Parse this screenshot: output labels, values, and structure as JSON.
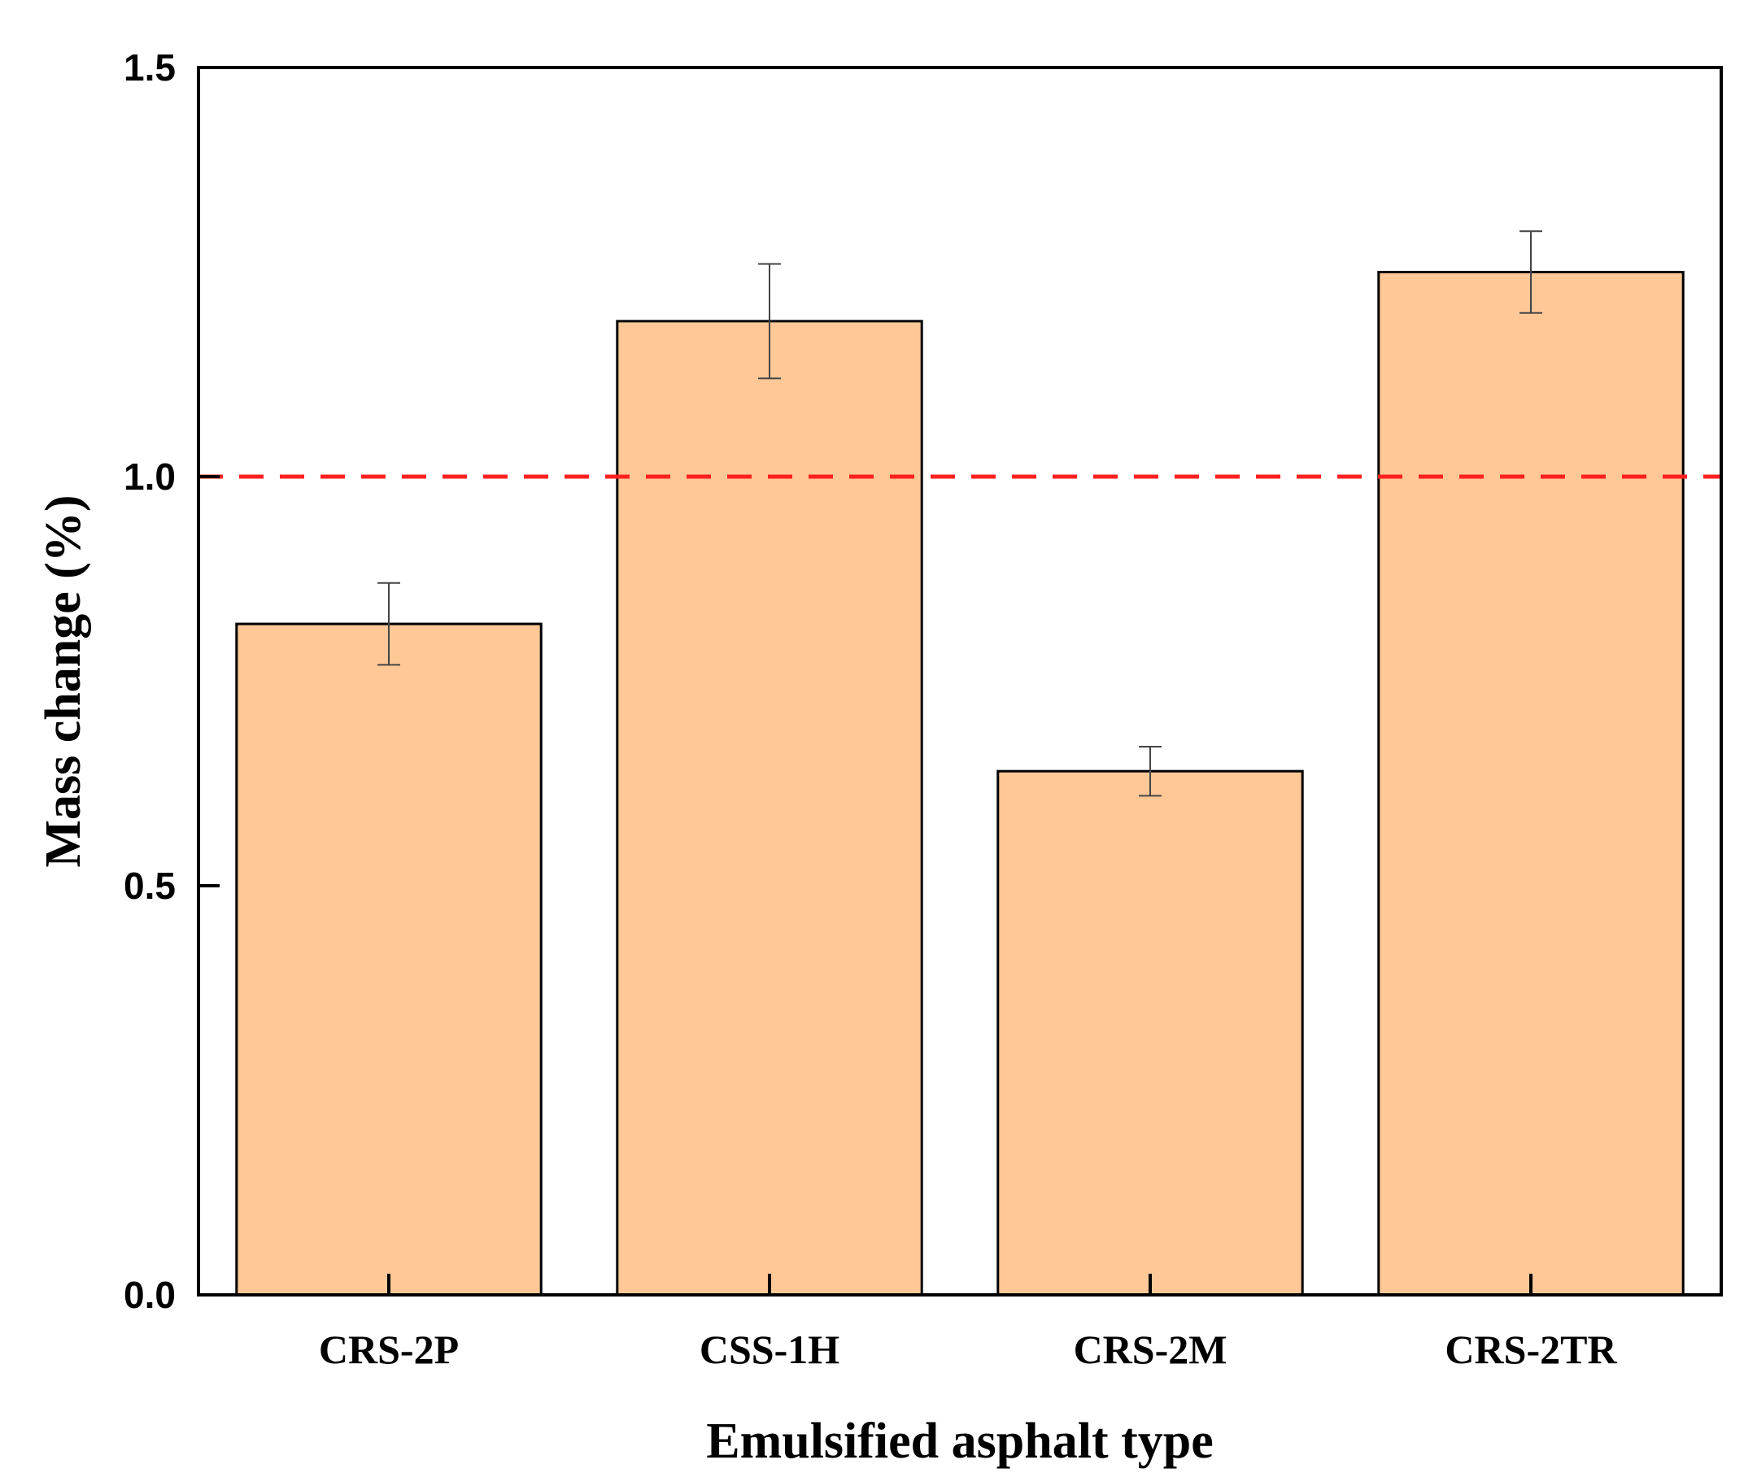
{
  "chart_data": {
    "type": "bar",
    "title": "",
    "xlabel": "Emulsified asphalt type",
    "ylabel": "Mass change (%)",
    "categories": [
      "CRS-2P",
      "CSS-1H",
      "CRS-2M",
      "CRS-2TR"
    ],
    "values": [
      0.82,
      1.19,
      0.64,
      1.25
    ],
    "errors": [
      0.05,
      0.07,
      0.03,
      0.05
    ],
    "ylim": [
      0,
      1.5
    ],
    "yticks": [
      0.0,
      0.5,
      1.0,
      1.5
    ],
    "ytick_labels": [
      "0.0",
      "0.5",
      "1.0",
      "1.5"
    ],
    "reference_line": {
      "value": 1.0,
      "style": "dashed"
    },
    "grid": false,
    "colors": {
      "bar_fill": "#FFC896",
      "bar_edge": "#000000",
      "reference_line": "#FF2020",
      "error_bar": "#444444"
    }
  }
}
